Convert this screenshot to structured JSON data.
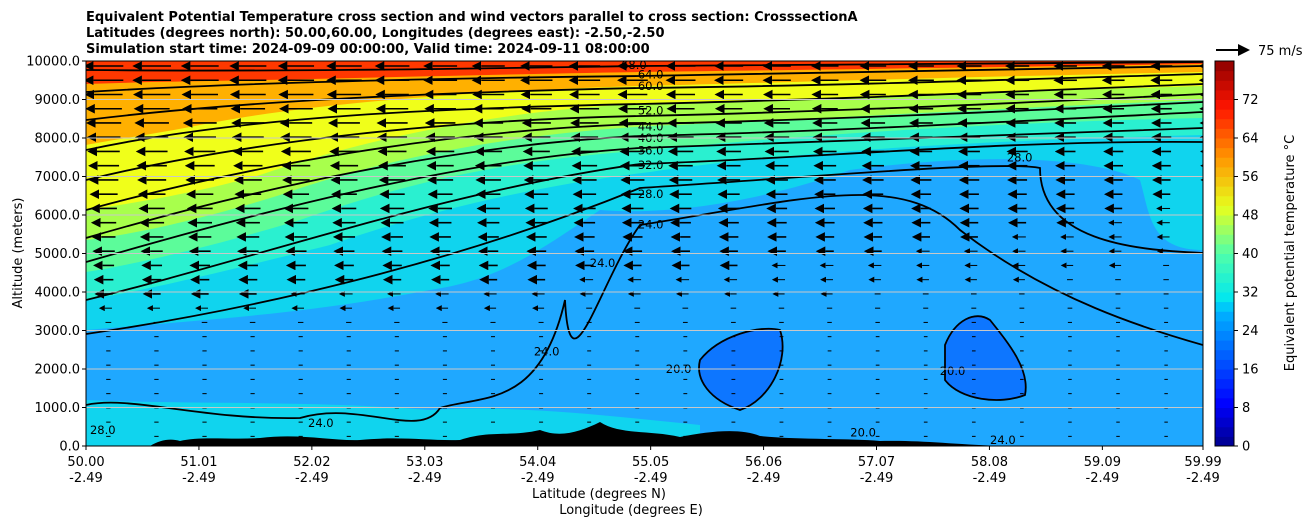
{
  "chart_data": {
    "type": "contour",
    "title_lines": [
      "Equivalent Potential Temperature cross section and wind vectors parallel to cross section: CrosssectionA",
      "Latitudes (degrees north): 50.00,60.00, Longitudes (degrees east): -2.50,-2.50",
      "Simulation start time: 2024-09-09 00:00:00, Valid time: 2024-09-11 08:00:00"
    ],
    "xlabel_lines": [
      "Latitude (degrees N)",
      "Longitude (degrees E)"
    ],
    "ylabel": "Altitude (meters)",
    "x_ticks": [
      {
        "lat": "50.00",
        "lon": "-2.49",
        "value": 50.0
      },
      {
        "lat": "51.01",
        "lon": "-2.49",
        "value": 51.01
      },
      {
        "lat": "52.02",
        "lon": "-2.49",
        "value": 52.02
      },
      {
        "lat": "53.03",
        "lon": "-2.49",
        "value": 53.03
      },
      {
        "lat": "54.04",
        "lon": "-2.49",
        "value": 54.04
      },
      {
        "lat": "55.05",
        "lon": "-2.49",
        "value": 55.05
      },
      {
        "lat": "56.06",
        "lon": "-2.49",
        "value": 56.06
      },
      {
        "lat": "57.07",
        "lon": "-2.49",
        "value": 57.07
      },
      {
        "lat": "58.08",
        "lon": "-2.49",
        "value": 58.08
      },
      {
        "lat": "59.09",
        "lon": "-2.49",
        "value": 59.09
      },
      {
        "lat": "59.99",
        "lon": "-2.49",
        "value": 59.99
      }
    ],
    "xlim": [
      50.0,
      59.99
    ],
    "y_ticks": [
      "0.0",
      "1000.0",
      "2000.0",
      "3000.0",
      "4000.0",
      "5000.0",
      "6000.0",
      "7000.0",
      "8000.0",
      "9000.0",
      "10000.0"
    ],
    "ylim": [
      0,
      10000
    ],
    "grid": "horizontal",
    "colorbar": {
      "label": "Equivalent potential temperature °C",
      "ticks": [
        "0",
        "8",
        "16",
        "24",
        "32",
        "40",
        "48",
        "56",
        "64",
        "72"
      ],
      "range": [
        0,
        80
      ],
      "colormap": "jet"
    },
    "wind_key": {
      "label": "75 m/s"
    },
    "contour_levels_labeled": [
      "20.0",
      "24.0",
      "28.0",
      "32.0",
      "36.0",
      "40.0",
      "44.0",
      "52.0",
      "60.0",
      "64.0",
      "68.0"
    ],
    "contour_label_positions": [
      {
        "text": "68.0",
        "lat": 54.9,
        "alt": 9900
      },
      {
        "text": "64.0",
        "lat": 55.05,
        "alt": 9650
      },
      {
        "text": "60.0",
        "lat": 55.05,
        "alt": 9350
      },
      {
        "text": "52.0",
        "lat": 55.05,
        "alt": 8720
      },
      {
        "text": "44.0",
        "lat": 55.05,
        "alt": 8300
      },
      {
        "text": "40.0",
        "lat": 55.05,
        "alt": 8000
      },
      {
        "text": "36.0",
        "lat": 55.05,
        "alt": 7680
      },
      {
        "text": "32.0",
        "lat": 55.05,
        "alt": 7300
      },
      {
        "text": "28.0",
        "lat": 55.05,
        "alt": 6550
      },
      {
        "text": "24.0",
        "lat": 55.05,
        "alt": 5750
      },
      {
        "text": "24.0",
        "lat": 54.62,
        "alt": 4750
      },
      {
        "text": "24.0",
        "lat": 54.12,
        "alt": 2450
      },
      {
        "text": "20.0",
        "lat": 55.3,
        "alt": 2000
      },
      {
        "text": "20.0",
        "lat": 57.75,
        "alt": 1950
      },
      {
        "text": "28.0",
        "lat": 58.35,
        "alt": 7500
      },
      {
        "text": "28.0",
        "lat": 50.15,
        "alt": 420
      },
      {
        "text": "24.0",
        "lat": 52.1,
        "alt": 600
      },
      {
        "text": "20.0",
        "lat": 56.95,
        "alt": 350
      },
      {
        "text": "24.0",
        "lat": 58.2,
        "alt": 150
      }
    ],
    "wind_direction": "northward-to-southward (arrows point toward lower latitude)"
  }
}
